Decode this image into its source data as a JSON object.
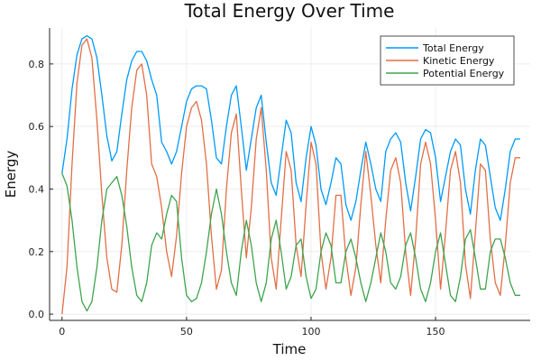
{
  "chart_data": {
    "type": "line",
    "title": "Total Energy Over Time",
    "xlabel": "Time",
    "ylabel": "Energy",
    "xlim": [
      -5,
      188
    ],
    "ylim": [
      -0.02,
      0.915
    ],
    "xticks": [
      0,
      50,
      100,
      150
    ],
    "xtick_labels": [
      "0",
      "50",
      "100",
      "150"
    ],
    "yticks": [
      0.0,
      0.2,
      0.4,
      0.6,
      0.8
    ],
    "ytick_labels": [
      "0.0",
      "0.2",
      "0.4",
      "0.6",
      "0.8"
    ],
    "grid": true,
    "legend_position": "top-right",
    "series": [
      {
        "name": "Total Energy",
        "color": "#009AFA",
        "x": [
          0,
          2,
          4,
          6,
          8,
          10,
          12,
          14,
          16,
          18,
          20,
          22,
          24,
          26,
          28,
          30,
          32,
          34,
          36,
          38,
          40,
          42,
          44,
          46,
          48,
          50,
          52,
          54,
          56,
          58,
          60,
          62,
          64,
          66,
          68,
          70,
          72,
          74,
          76,
          78,
          80,
          82,
          84,
          86,
          88,
          90,
          92,
          94,
          96,
          98,
          100,
          102,
          104,
          106,
          108,
          110,
          112,
          114,
          116,
          118,
          120,
          122,
          124,
          126,
          128,
          130,
          132,
          134,
          136,
          138,
          140,
          142,
          144,
          146,
          148,
          150,
          152,
          154,
          156,
          158,
          160,
          162,
          164,
          166,
          168,
          170,
          172,
          174,
          176,
          178,
          180,
          182,
          184
        ],
        "values": [
          0.45,
          0.56,
          0.72,
          0.83,
          0.88,
          0.89,
          0.88,
          0.82,
          0.7,
          0.57,
          0.49,
          0.52,
          0.64,
          0.75,
          0.81,
          0.84,
          0.84,
          0.81,
          0.75,
          0.7,
          0.55,
          0.52,
          0.48,
          0.52,
          0.6,
          0.68,
          0.72,
          0.73,
          0.73,
          0.72,
          0.62,
          0.5,
          0.48,
          0.6,
          0.7,
          0.73,
          0.6,
          0.46,
          0.56,
          0.66,
          0.7,
          0.55,
          0.42,
          0.38,
          0.5,
          0.62,
          0.58,
          0.42,
          0.36,
          0.5,
          0.6,
          0.54,
          0.4,
          0.35,
          0.42,
          0.5,
          0.48,
          0.35,
          0.3,
          0.36,
          0.46,
          0.55,
          0.48,
          0.4,
          0.36,
          0.52,
          0.56,
          0.58,
          0.55,
          0.42,
          0.33,
          0.44,
          0.56,
          0.59,
          0.58,
          0.5,
          0.36,
          0.44,
          0.52,
          0.56,
          0.54,
          0.4,
          0.32,
          0.46,
          0.56,
          0.54,
          0.44,
          0.34,
          0.3,
          0.4,
          0.52,
          0.56,
          0.56
        ]
      },
      {
        "name": "Kinetic Energy",
        "color": "#E26F46",
        "x": [
          0,
          2,
          4,
          6,
          8,
          10,
          12,
          14,
          16,
          18,
          20,
          22,
          24,
          26,
          28,
          30,
          32,
          34,
          36,
          38,
          40,
          42,
          44,
          46,
          48,
          50,
          52,
          54,
          56,
          58,
          60,
          62,
          64,
          66,
          68,
          70,
          72,
          74,
          76,
          78,
          80,
          82,
          84,
          86,
          88,
          90,
          92,
          94,
          96,
          98,
          100,
          102,
          104,
          106,
          108,
          110,
          112,
          114,
          116,
          118,
          120,
          122,
          124,
          126,
          128,
          130,
          132,
          134,
          136,
          138,
          140,
          142,
          144,
          146,
          148,
          150,
          152,
          154,
          156,
          158,
          160,
          162,
          164,
          166,
          168,
          170,
          172,
          174,
          176,
          178,
          180,
          182,
          184
        ],
        "values": [
          0.0,
          0.15,
          0.48,
          0.74,
          0.86,
          0.88,
          0.82,
          0.62,
          0.38,
          0.18,
          0.08,
          0.07,
          0.22,
          0.46,
          0.66,
          0.78,
          0.8,
          0.7,
          0.48,
          0.44,
          0.34,
          0.2,
          0.12,
          0.25,
          0.45,
          0.6,
          0.66,
          0.68,
          0.62,
          0.48,
          0.25,
          0.08,
          0.14,
          0.4,
          0.58,
          0.64,
          0.4,
          0.18,
          0.34,
          0.56,
          0.66,
          0.46,
          0.18,
          0.08,
          0.3,
          0.52,
          0.46,
          0.22,
          0.12,
          0.35,
          0.55,
          0.48,
          0.2,
          0.08,
          0.18,
          0.38,
          0.38,
          0.18,
          0.06,
          0.15,
          0.35,
          0.52,
          0.38,
          0.22,
          0.1,
          0.3,
          0.46,
          0.5,
          0.42,
          0.2,
          0.06,
          0.24,
          0.48,
          0.55,
          0.48,
          0.3,
          0.08,
          0.26,
          0.46,
          0.52,
          0.42,
          0.16,
          0.05,
          0.26,
          0.48,
          0.46,
          0.24,
          0.1,
          0.06,
          0.22,
          0.42,
          0.5,
          0.5
        ]
      },
      {
        "name": "Potential Energy",
        "color": "#3EA44E",
        "x": [
          0,
          2,
          4,
          6,
          8,
          10,
          12,
          14,
          16,
          18,
          20,
          22,
          24,
          26,
          28,
          30,
          32,
          34,
          36,
          38,
          40,
          42,
          44,
          46,
          48,
          50,
          52,
          54,
          56,
          58,
          60,
          62,
          64,
          66,
          68,
          70,
          72,
          74,
          76,
          78,
          80,
          82,
          84,
          86,
          88,
          90,
          92,
          94,
          96,
          98,
          100,
          102,
          104,
          106,
          108,
          110,
          112,
          114,
          116,
          118,
          120,
          122,
          124,
          126,
          128,
          130,
          132,
          134,
          136,
          138,
          140,
          142,
          144,
          146,
          148,
          150,
          152,
          154,
          156,
          158,
          160,
          162,
          164,
          166,
          168,
          170,
          172,
          174,
          176,
          178,
          180,
          182,
          184
        ],
        "values": [
          0.45,
          0.41,
          0.3,
          0.15,
          0.04,
          0.01,
          0.04,
          0.15,
          0.3,
          0.4,
          0.42,
          0.44,
          0.38,
          0.28,
          0.15,
          0.06,
          0.04,
          0.1,
          0.22,
          0.26,
          0.24,
          0.32,
          0.38,
          0.36,
          0.18,
          0.06,
          0.04,
          0.05,
          0.1,
          0.2,
          0.32,
          0.4,
          0.32,
          0.2,
          0.1,
          0.06,
          0.2,
          0.3,
          0.22,
          0.1,
          0.04,
          0.1,
          0.24,
          0.3,
          0.2,
          0.08,
          0.12,
          0.22,
          0.24,
          0.12,
          0.05,
          0.08,
          0.2,
          0.26,
          0.22,
          0.1,
          0.1,
          0.2,
          0.24,
          0.18,
          0.1,
          0.04,
          0.1,
          0.18,
          0.26,
          0.2,
          0.1,
          0.08,
          0.12,
          0.22,
          0.26,
          0.18,
          0.08,
          0.04,
          0.1,
          0.2,
          0.26,
          0.16,
          0.06,
          0.04,
          0.12,
          0.24,
          0.27,
          0.18,
          0.08,
          0.08,
          0.2,
          0.24,
          0.24,
          0.18,
          0.1,
          0.06,
          0.06
        ]
      }
    ]
  }
}
